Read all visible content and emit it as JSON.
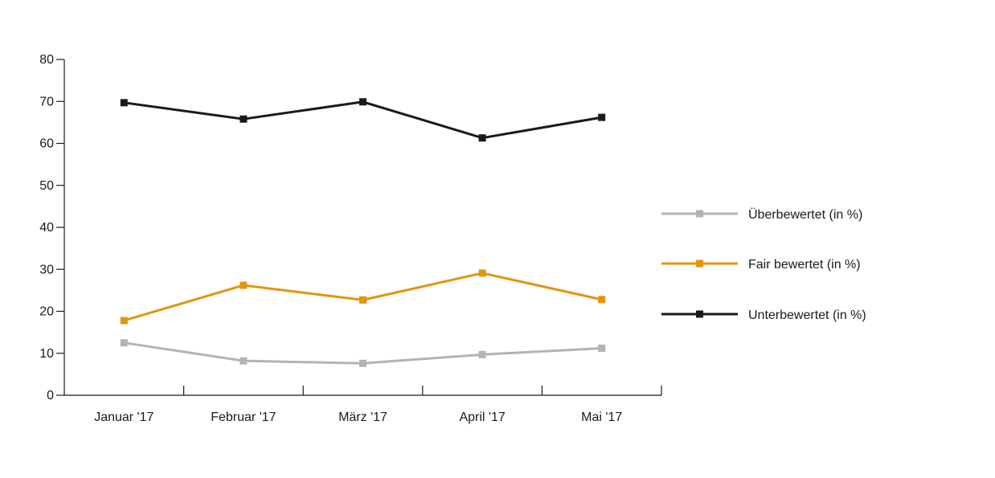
{
  "chart_data": {
    "type": "line",
    "title": "",
    "xlabel": "",
    "ylabel": "",
    "categories": [
      "Januar '17",
      "Februar '17",
      "März '17",
      "April '17",
      "Mai '17"
    ],
    "ylim": [
      0,
      80
    ],
    "yticks": [
      0,
      10,
      20,
      30,
      40,
      50,
      60,
      70,
      80
    ],
    "grid": false,
    "legend_position": "right",
    "series": [
      {
        "name": "Überbewertet (in %)",
        "color": "#b3b3b3",
        "values": [
          12.5,
          8.2,
          7.6,
          9.7,
          11.2
        ]
      },
      {
        "name": "Fair bewertet (in %)",
        "color": "#e0960f",
        "values": [
          17.8,
          26.2,
          22.7,
          29.1,
          22.8
        ]
      },
      {
        "name": "Unterbewertet (in %)",
        "color": "#1a1a1a",
        "values": [
          69.7,
          65.8,
          69.9,
          61.3,
          66.2
        ]
      }
    ]
  }
}
